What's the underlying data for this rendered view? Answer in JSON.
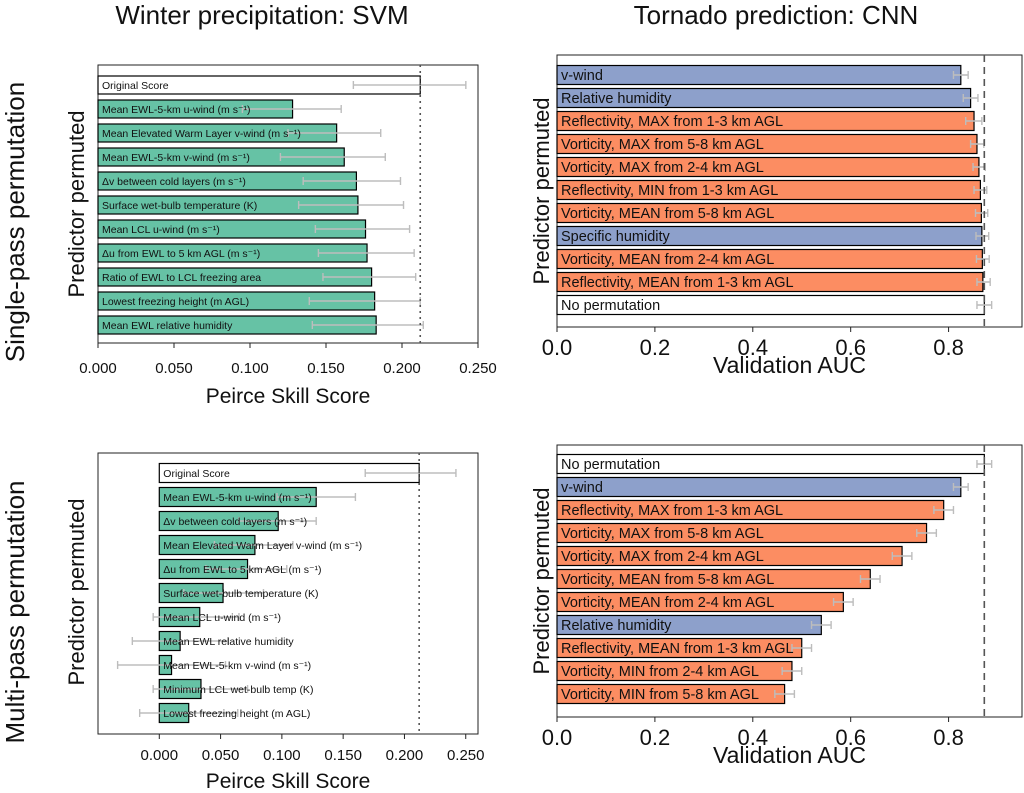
{
  "columns": [
    "Winter precipitation: SVM",
    "Tornado prediction: CNN"
  ],
  "rows": [
    "Single-pass permutation",
    "Multi-pass permutation"
  ],
  "colors": {
    "teal": "#66c2a5",
    "blue": "#8da0cb",
    "orange": "#fc8d62",
    "original": "#ffffff",
    "error": "#bdbdbd"
  },
  "chart_data": [
    {
      "type": "bar",
      "orientation": "horizontal",
      "xlabel": "Peirce Skill Score",
      "ylabel": "Predictor permuted",
      "xlim": [
        0,
        0.25
      ],
      "xticks": [
        "0.000",
        "0.050",
        "0.100",
        "0.150",
        "0.200",
        "0.250"
      ],
      "reference": 0.212,
      "reference_style": "dotted",
      "bars": [
        {
          "label": "Original Score",
          "value": 0.212,
          "lo": 0.168,
          "hi": 0.242,
          "kind": "original"
        },
        {
          "label": "Mean EWL-5-km u-wind (m s⁻¹)",
          "value": 0.128,
          "lo": 0.095,
          "hi": 0.16,
          "kind": "teal"
        },
        {
          "label": "Mean Elevated Warm Layer v-wind (m s⁻¹)",
          "value": 0.157,
          "lo": 0.125,
          "hi": 0.186,
          "kind": "teal"
        },
        {
          "label": "Mean EWL-5-km v-wind (m s⁻¹)",
          "value": 0.162,
          "lo": 0.12,
          "hi": 0.189,
          "kind": "teal"
        },
        {
          "label": "Δv between cold layers (m s⁻¹)",
          "value": 0.17,
          "lo": 0.135,
          "hi": 0.199,
          "kind": "teal"
        },
        {
          "label": "Surface wet-bulb temperature (K)",
          "value": 0.171,
          "lo": 0.132,
          "hi": 0.201,
          "kind": "teal"
        },
        {
          "label": "Mean LCL u-wind (m s⁻¹)",
          "value": 0.176,
          "lo": 0.143,
          "hi": 0.205,
          "kind": "teal"
        },
        {
          "label": "Δu from EWL to 5 km AGL (m s⁻¹)",
          "value": 0.177,
          "lo": 0.145,
          "hi": 0.208,
          "kind": "teal"
        },
        {
          "label": "Ratio of EWL to LCL freezing area",
          "value": 0.18,
          "lo": 0.148,
          "hi": 0.209,
          "kind": "teal"
        },
        {
          "label": "Lowest freezing height (m AGL)",
          "value": 0.182,
          "lo": 0.139,
          "hi": 0.212,
          "kind": "teal"
        },
        {
          "label": "Mean EWL relative humidity",
          "value": 0.183,
          "lo": 0.141,
          "hi": 0.214,
          "kind": "teal"
        }
      ]
    },
    {
      "type": "bar",
      "orientation": "horizontal",
      "xlabel": "Validation AUC",
      "ylabel": "Predictor permuted",
      "xlim": [
        0,
        0.95
      ],
      "xticks": [
        "0.0",
        "0.2",
        "0.4",
        "0.6",
        "0.8"
      ],
      "reference": 0.873,
      "reference_style": "dashed",
      "bars": [
        {
          "label": "v-wind",
          "value": 0.825,
          "lo": 0.81,
          "hi": 0.84,
          "kind": "blue"
        },
        {
          "label": "Relative humidity",
          "value": 0.845,
          "lo": 0.83,
          "hi": 0.86,
          "kind": "blue"
        },
        {
          "label": "Reflectivity, MAX from 1-3 km AGL",
          "value": 0.852,
          "lo": 0.835,
          "hi": 0.868,
          "kind": "orange"
        },
        {
          "label": "Vorticity, MAX from 5-8 km AGL",
          "value": 0.858,
          "lo": 0.845,
          "hi": 0.872,
          "kind": "orange"
        },
        {
          "label": "Vorticity, MAX from 2-4 km AGL",
          "value": 0.862,
          "lo": 0.85,
          "hi": 0.875,
          "kind": "orange"
        },
        {
          "label": "Reflectivity, MIN from 1-3 km AGL",
          "value": 0.865,
          "lo": 0.852,
          "hi": 0.878,
          "kind": "orange"
        },
        {
          "label": "Vorticity, MEAN from 5-8 km AGL",
          "value": 0.867,
          "lo": 0.855,
          "hi": 0.88,
          "kind": "orange"
        },
        {
          "label": "Specific humidity",
          "value": 0.868,
          "lo": 0.856,
          "hi": 0.882,
          "kind": "blue"
        },
        {
          "label": "Vorticity, MEAN from 2-4 km AGL",
          "value": 0.869,
          "lo": 0.857,
          "hi": 0.883,
          "kind": "orange"
        },
        {
          "label": "Reflectivity, MEAN from 1-3 km AGL",
          "value": 0.87,
          "lo": 0.858,
          "hi": 0.885,
          "kind": "orange"
        },
        {
          "label": "No permutation",
          "value": 0.873,
          "lo": 0.858,
          "hi": 0.888,
          "kind": "original"
        }
      ]
    },
    {
      "type": "bar",
      "orientation": "horizontal",
      "xlabel": "Peirce Skill Score",
      "ylabel": "Predictor permuted",
      "xlim": [
        -0.05,
        0.26
      ],
      "xticks": [
        "0.000",
        "0.050",
        "0.100",
        "0.150",
        "0.200",
        "0.250"
      ],
      "reference": 0.212,
      "reference_style": "dotted",
      "bars": [
        {
          "label": "Original Score",
          "value": 0.212,
          "lo": 0.168,
          "hi": 0.242,
          "kind": "original"
        },
        {
          "label": "Mean EWL-5-km u-wind (m s⁻¹)",
          "value": 0.128,
          "lo": 0.096,
          "hi": 0.16,
          "kind": "teal"
        },
        {
          "label": "Δv between cold layers (m s⁻¹)",
          "value": 0.097,
          "lo": 0.065,
          "hi": 0.128,
          "kind": "teal"
        },
        {
          "label": "Mean Elevated Warm Layer v-wind (m s⁻¹)",
          "value": 0.078,
          "lo": 0.045,
          "hi": 0.109,
          "kind": "teal"
        },
        {
          "label": "Δu from EWL to 5 km AGL (m s⁻¹)",
          "value": 0.072,
          "lo": 0.038,
          "hi": 0.104,
          "kind": "teal"
        },
        {
          "label": "Surface wet-bulb temperature (K)",
          "value": 0.052,
          "lo": 0.02,
          "hi": 0.085,
          "kind": "teal"
        },
        {
          "label": "Mean LCL u-wind (m s⁻¹)",
          "value": 0.033,
          "lo": -0.005,
          "hi": 0.065,
          "kind": "teal"
        },
        {
          "label": "Mean EWL relative humidity",
          "value": 0.017,
          "lo": -0.022,
          "hi": 0.056,
          "kind": "teal"
        },
        {
          "label": "Mean EWL-5-km v-wind (m s⁻¹)",
          "value": 0.01,
          "lo": -0.034,
          "hi": 0.054,
          "kind": "teal"
        },
        {
          "label": "Minimum LCL wet-bulb temp (K)",
          "value": 0.034,
          "lo": -0.005,
          "hi": 0.072,
          "kind": "teal"
        },
        {
          "label": "Lowest freezing height (m AGL)",
          "value": 0.024,
          "lo": -0.016,
          "hi": 0.064,
          "kind": "teal"
        }
      ]
    },
    {
      "type": "bar",
      "orientation": "horizontal",
      "xlabel": "Validation AUC",
      "ylabel": "Predictor permuted",
      "xlim": [
        0,
        0.95
      ],
      "xticks": [
        "0.0",
        "0.2",
        "0.4",
        "0.6",
        "0.8"
      ],
      "reference": 0.873,
      "reference_style": "dashed",
      "bars": [
        {
          "label": "No permutation",
          "value": 0.873,
          "lo": 0.858,
          "hi": 0.888,
          "kind": "original"
        },
        {
          "label": "v-wind",
          "value": 0.825,
          "lo": 0.81,
          "hi": 0.84,
          "kind": "blue"
        },
        {
          "label": "Reflectivity, MAX from 1-3 km AGL",
          "value": 0.79,
          "lo": 0.77,
          "hi": 0.81,
          "kind": "orange"
        },
        {
          "label": "Vorticity, MAX from 5-8 km AGL",
          "value": 0.755,
          "lo": 0.735,
          "hi": 0.775,
          "kind": "orange"
        },
        {
          "label": "Vorticity, MAX from 2-4 km AGL",
          "value": 0.705,
          "lo": 0.685,
          "hi": 0.725,
          "kind": "orange"
        },
        {
          "label": "Vorticity, MEAN from 5-8 km AGL",
          "value": 0.64,
          "lo": 0.62,
          "hi": 0.66,
          "kind": "orange"
        },
        {
          "label": "Vorticity, MEAN from 2-4 km AGL",
          "value": 0.585,
          "lo": 0.565,
          "hi": 0.605,
          "kind": "orange"
        },
        {
          "label": "Relative humidity",
          "value": 0.54,
          "lo": 0.52,
          "hi": 0.56,
          "kind": "blue"
        },
        {
          "label": "Reflectivity, MEAN from 1-3 km AGL",
          "value": 0.5,
          "lo": 0.48,
          "hi": 0.52,
          "kind": "orange"
        },
        {
          "label": "Vorticity, MIN from 2-4 km AGL",
          "value": 0.48,
          "lo": 0.46,
          "hi": 0.5,
          "kind": "orange"
        },
        {
          "label": "Vorticity, MIN from 5-8 km AGL",
          "value": 0.465,
          "lo": 0.445,
          "hi": 0.485,
          "kind": "orange"
        }
      ]
    }
  ]
}
